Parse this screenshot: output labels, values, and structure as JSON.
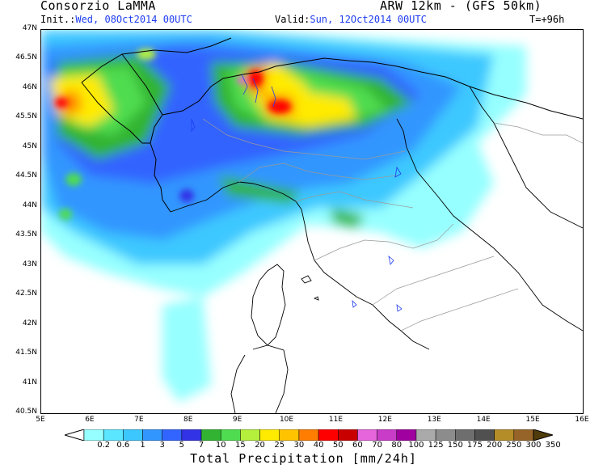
{
  "header": {
    "org": "Consorzio LaMMA",
    "model": "ARW 12km - (GFS 50km)",
    "init_label": "Init.:",
    "init_value": "Wed, 08Oct2014 00UTC",
    "valid_label": "Valid:",
    "valid_value": "Sun, 12Oct2014 00UTC",
    "lead": "T=+96h"
  },
  "map": {
    "lat_labels": [
      "47N",
      "46.5N",
      "46N",
      "45.5N",
      "45N",
      "44.5N",
      "44N",
      "43.5N",
      "43N",
      "42.5N",
      "42N",
      "41.5N",
      "41N",
      "40.5N"
    ],
    "lon_labels": [
      "5E",
      "6E",
      "7E",
      "8E",
      "9E",
      "10E",
      "11E",
      "12E",
      "13E",
      "14E",
      "15E",
      "16E"
    ],
    "lon_range": [
      5,
      16
    ],
    "lat_range": [
      40.5,
      47
    ],
    "land_color": "#ffffff",
    "border_color": "#000000",
    "region_border_color": "#9a9a9a"
  },
  "colorbar": {
    "title": "Total Precipitation [mm/24h]",
    "labels": [
      "0.2",
      "0.6",
      "1",
      "3",
      "5",
      "7",
      "10",
      "15",
      "20",
      "25",
      "30",
      "40",
      "50",
      "60",
      "70",
      "80",
      "100",
      "125",
      "150",
      "175",
      "200",
      "250",
      "300",
      "350"
    ],
    "colors": [
      "#96ffff",
      "#5ae6ff",
      "#3cc8ff",
      "#3296ff",
      "#3264ff",
      "#3232e6",
      "#32b432",
      "#50dc50",
      "#b4f03c",
      "#ffeb00",
      "#ffc300",
      "#ff7d00",
      "#ff0000",
      "#c80000",
      "#e664dc",
      "#c83cc8",
      "#a000a0",
      "#aaaaaa",
      "#8c8c8c",
      "#6e6e6e",
      "#505050",
      "#b48c28",
      "#966428",
      "#785014",
      "#503c0a"
    ]
  }
}
